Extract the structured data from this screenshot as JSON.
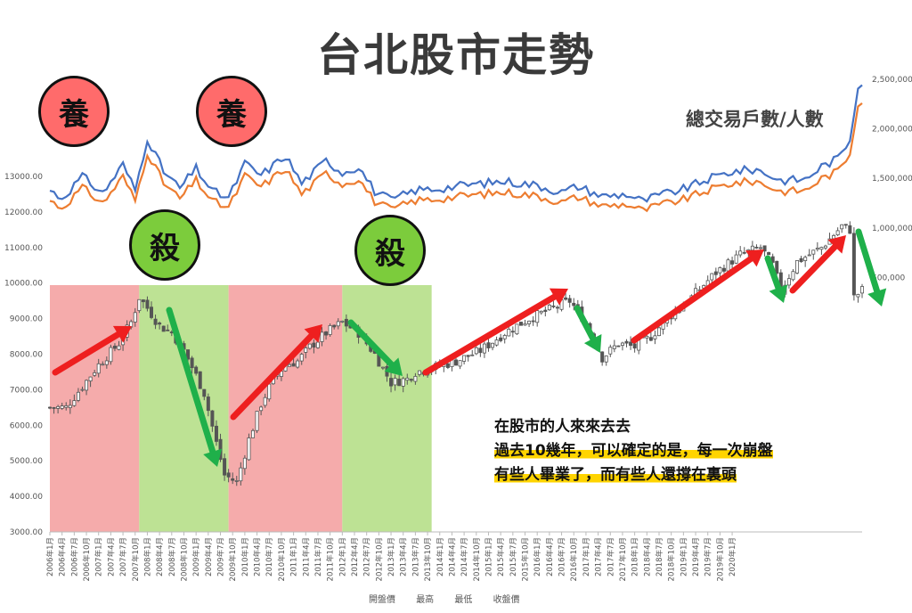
{
  "title": "台北股市走勢",
  "badges": [
    {
      "text": "養",
      "kind": "raise"
    },
    {
      "text": "養",
      "kind": "raise"
    },
    {
      "text": "殺",
      "kind": "kill"
    },
    {
      "text": "殺",
      "kind": "kill"
    }
  ],
  "series_label": "總交易戶數/人數",
  "note": {
    "line1": "在股市的人來來去去",
    "line2": "過去10幾年，可以確定的是，每一次崩盤",
    "line3": "有些人畢業了，而有些人還撐在裏頭"
  },
  "legend": [
    "開盤價",
    "最高",
    "最低",
    "收盤價"
  ],
  "colors": {
    "raise_zone": "#f4a6a6",
    "kill_zone": "#b9e08e",
    "up_arrow": "#ee1f1f",
    "down_arrow": "#1fb04a",
    "accounts_line": "#4472c4",
    "people_line": "#ed7d31",
    "candle": "#555555"
  },
  "chart_data": {
    "type": "candlestick",
    "left_axis": {
      "ticks": [
        "3000.00",
        "4000.00",
        "5000.00",
        "6000.00",
        "7000.00",
        "8000.00",
        "9000.00",
        "10000.00",
        "11000.00",
        "12000.00",
        "13000.00"
      ],
      "range": [
        3000,
        13000
      ]
    },
    "right_axis": {
      "ticks": [
        "500,000",
        "1,000,000",
        "1,500,000",
        "2,000,000",
        "2,500,000"
      ],
      "range": [
        0,
        2500000
      ]
    },
    "x_labels": [
      "2006年1月",
      "2006年4月",
      "2006年7月",
      "2006年10月",
      "2007年1月",
      "2007年4月",
      "2007年7月",
      "2007年10月",
      "2008年1月",
      "2008年4月",
      "2008年7月",
      "2008年10月",
      "2009年1月",
      "2009年4月",
      "2009年7月",
      "2009年10月",
      "2010年1月",
      "2010年4月",
      "2010年7月",
      "2010年10月",
      "2011年1月",
      "2011年4月",
      "2011年7月",
      "2011年10月",
      "2012年1月",
      "2012年4月",
      "2012年7月",
      "2012年10月",
      "2013年1月",
      "2013年4月",
      "2013年7月",
      "2013年10月",
      "2014年1月",
      "2014年4月",
      "2014年7月",
      "2014年10月",
      "2015年1月",
      "2015年4月",
      "2015年7月",
      "2015年10月",
      "2016年1月",
      "2016年4月",
      "2016年7月",
      "2016年10月",
      "2017年1月",
      "2017年4月",
      "2017年7月",
      "2017年10月",
      "2018年1月",
      "2018年4月",
      "2018年7月",
      "2018年10月",
      "2019年1月",
      "2019年4月",
      "2019年7月",
      "2019年10月",
      "2020年1月"
    ],
    "close_anchors": [
      [
        0,
        6500
      ],
      [
        4,
        6500
      ],
      [
        8,
        7100
      ],
      [
        12,
        7700
      ],
      [
        17,
        8300
      ],
      [
        20,
        8900
      ],
      [
        22,
        9600
      ],
      [
        24,
        9300
      ],
      [
        27,
        8800
      ],
      [
        30,
        8600
      ],
      [
        33,
        8100
      ],
      [
        36,
        7400
      ],
      [
        38,
        6900
      ],
      [
        41,
        5500
      ],
      [
        43,
        4600
      ],
      [
        46,
        4400
      ],
      [
        49,
        5600
      ],
      [
        52,
        6600
      ],
      [
        55,
        7300
      ],
      [
        58,
        7700
      ],
      [
        61,
        7800
      ],
      [
        64,
        8200
      ],
      [
        68,
        8600
      ],
      [
        72,
        8900
      ],
      [
        76,
        8600
      ],
      [
        80,
        8000
      ],
      [
        84,
        7200
      ],
      [
        88,
        7300
      ],
      [
        90,
        7500
      ],
      [
        94,
        7600
      ],
      [
        100,
        7800
      ],
      [
        106,
        8100
      ],
      [
        112,
        8600
      ],
      [
        118,
        9000
      ],
      [
        124,
        9300
      ],
      [
        128,
        9500
      ],
      [
        132,
        8900
      ],
      [
        136,
        7900
      ],
      [
        140,
        8300
      ],
      [
        144,
        8200
      ],
      [
        148,
        8500
      ],
      [
        152,
        9000
      ],
      [
        158,
        9600
      ],
      [
        164,
        10300
      ],
      [
        170,
        10800
      ],
      [
        175,
        11000
      ],
      [
        178,
        10500
      ],
      [
        180,
        9800
      ],
      [
        184,
        10600
      ],
      [
        190,
        11000
      ],
      [
        195,
        11600
      ],
      [
        197,
        11500
      ],
      [
        198,
        9600
      ],
      [
        200,
        9800
      ]
    ],
    "accounts_anchors": [
      [
        0,
        1380000
      ],
      [
        3,
        1300000
      ],
      [
        8,
        1520000
      ],
      [
        13,
        1350000
      ],
      [
        18,
        1640000
      ],
      [
        21,
        1380000
      ],
      [
        24,
        1910000
      ],
      [
        28,
        1570000
      ],
      [
        32,
        1400000
      ],
      [
        36,
        1600000
      ],
      [
        40,
        1370000
      ],
      [
        44,
        1300000
      ],
      [
        48,
        1650000
      ],
      [
        52,
        1530000
      ],
      [
        58,
        1730000
      ],
      [
        62,
        1450000
      ],
      [
        68,
        1680000
      ],
      [
        72,
        1560000
      ],
      [
        76,
        1620000
      ],
      [
        80,
        1370000
      ],
      [
        84,
        1280000
      ],
      [
        90,
        1380000
      ],
      [
        96,
        1400000
      ],
      [
        104,
        1440000
      ],
      [
        112,
        1470000
      ],
      [
        120,
        1430000
      ],
      [
        126,
        1360000
      ],
      [
        130,
        1420000
      ],
      [
        136,
        1320000
      ],
      [
        142,
        1340000
      ],
      [
        146,
        1270000
      ],
      [
        150,
        1330000
      ],
      [
        156,
        1390000
      ],
      [
        162,
        1490000
      ],
      [
        168,
        1570000
      ],
      [
        174,
        1590000
      ],
      [
        180,
        1480000
      ],
      [
        186,
        1490000
      ],
      [
        190,
        1620000
      ],
      [
        194,
        1700000
      ],
      [
        197,
        1900000
      ],
      [
        199,
        2450000
      ]
    ],
    "people_ratio": 0.925
  }
}
